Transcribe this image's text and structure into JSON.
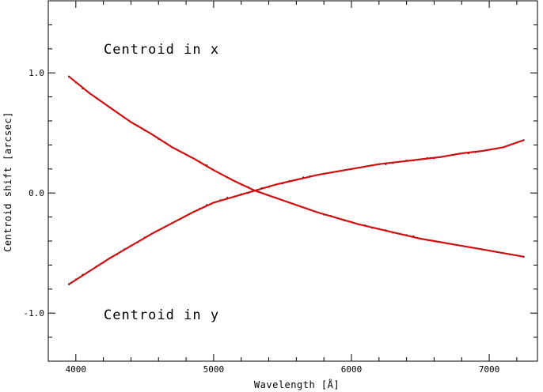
{
  "chart_data": {
    "type": "scatter",
    "title": "",
    "xlabel": "Wavelength [Å]",
    "ylabel": "Centroid shift [arcsec]",
    "xlim": [
      3800,
      7350
    ],
    "ylim": [
      -1.4,
      1.6
    ],
    "x_ticks": [
      4000,
      5000,
      6000,
      7000
    ],
    "y_ticks": [
      -1.0,
      0.0,
      1.0
    ],
    "x_tick_labels": [
      "4000",
      "5000",
      "6000",
      "7000"
    ],
    "y_tick_labels": [
      "-1.0",
      "0.0",
      "1.0"
    ],
    "grid": false,
    "legend": "none",
    "annotations": [
      {
        "text": "Centroid in x",
        "x": 4200,
        "y": 1.18
      },
      {
        "text": "Centroid in y",
        "x": 4200,
        "y": -1.0
      }
    ],
    "series": [
      {
        "kind": "points",
        "color": "#000000",
        "x": [
          3950,
          4000,
          4050,
          4100,
          4150,
          4200,
          4250,
          4300,
          4350,
          4400,
          4450,
          4500,
          4550,
          4600,
          4650,
          4700,
          4750,
          4800,
          4850,
          4900,
          4950,
          5000,
          5050,
          5100,
          5150,
          5200,
          5250,
          5300,
          5350,
          5400,
          5450,
          5500,
          5550,
          5600,
          5650,
          5700,
          5750,
          5800,
          5850,
          5900,
          5950,
          6000,
          6050,
          6100,
          6150,
          6200,
          6250,
          6300,
          6350,
          6400,
          6450,
          6500,
          6550,
          6600,
          6650,
          6700,
          6750,
          6800,
          6850,
          6900,
          6950,
          7000,
          7050,
          7100,
          7150,
          7200,
          7250
        ],
        "y": [
          0.97,
          0.92,
          0.87,
          0.83,
          0.79,
          0.75,
          0.71,
          0.67,
          0.63,
          0.59,
          0.56,
          0.52,
          0.49,
          0.45,
          0.42,
          0.38,
          0.35,
          0.32,
          0.29,
          0.26,
          0.23,
          0.19,
          0.16,
          0.13,
          0.1,
          0.07,
          0.05,
          0.02,
          0.0,
          -0.02,
          -0.04,
          -0.06,
          -0.08,
          -0.1,
          -0.12,
          -0.14,
          -0.16,
          -0.18,
          -0.19,
          -0.21,
          -0.23,
          -0.24,
          -0.26,
          -0.27,
          -0.29,
          -0.3,
          -0.31,
          -0.33,
          -0.34,
          -0.35,
          -0.36,
          -0.38,
          -0.39,
          -0.4,
          -0.41,
          -0.42,
          -0.43,
          -0.44,
          -0.45,
          -0.46,
          -0.47,
          -0.48,
          -0.49,
          -0.5,
          -0.51,
          -0.52,
          -0.53
        ]
      },
      {
        "kind": "points",
        "color": "#000000",
        "x": [
          3950,
          4000,
          4050,
          4100,
          4150,
          4200,
          4250,
          4300,
          4350,
          4400,
          4450,
          4500,
          4550,
          4600,
          4650,
          4700,
          4750,
          4800,
          4850,
          4900,
          4950,
          5000,
          5050,
          5100,
          5150,
          5200,
          5250,
          5300,
          5350,
          5400,
          5450,
          5500,
          5550,
          5600,
          5650,
          5700,
          5750,
          5800,
          5850,
          5900,
          5950,
          6000,
          6050,
          6100,
          6150,
          6200,
          6250,
          6300,
          6350,
          6400,
          6450,
          6500,
          6550,
          6600,
          6650,
          6700,
          6750,
          6800,
          6850,
          6900,
          6950,
          7000,
          7050,
          7100,
          7150,
          7200,
          7250
        ],
        "y": [
          -0.76,
          -0.72,
          -0.68,
          -0.65,
          -0.61,
          -0.58,
          -0.54,
          -0.51,
          -0.47,
          -0.44,
          -0.41,
          -0.37,
          -0.34,
          -0.31,
          -0.28,
          -0.25,
          -0.22,
          -0.19,
          -0.16,
          -0.13,
          -0.1,
          -0.08,
          -0.06,
          -0.04,
          -0.03,
          -0.01,
          0.0,
          0.02,
          0.04,
          0.05,
          0.07,
          0.08,
          0.1,
          0.11,
          0.13,
          0.14,
          0.15,
          0.16,
          0.17,
          0.18,
          0.19,
          0.2,
          0.21,
          0.22,
          0.23,
          0.24,
          0.24,
          0.25,
          0.26,
          0.27,
          0.27,
          0.28,
          0.29,
          0.29,
          0.3,
          0.31,
          0.32,
          0.33,
          0.33,
          0.34,
          0.35,
          0.36,
          0.37,
          0.38,
          0.4,
          0.42,
          0.44
        ]
      },
      {
        "kind": "fit",
        "color": "#d01010",
        "x": [
          3950,
          4100,
          4250,
          4400,
          4550,
          4700,
          4850,
          5000,
          5150,
          5300,
          5450,
          5600,
          5750,
          5900,
          6050,
          6200,
          6350,
          6500,
          6650,
          6800,
          6950,
          7100,
          7250
        ],
        "y": [
          0.97,
          0.83,
          0.71,
          0.59,
          0.49,
          0.38,
          0.29,
          0.19,
          0.1,
          0.02,
          -0.04,
          -0.1,
          -0.16,
          -0.21,
          -0.26,
          -0.3,
          -0.34,
          -0.38,
          -0.41,
          -0.44,
          -0.47,
          -0.5,
          -0.53
        ]
      },
      {
        "kind": "fit",
        "color": "#d01010",
        "x": [
          3950,
          4100,
          4250,
          4400,
          4550,
          4700,
          4850,
          5000,
          5150,
          5300,
          5450,
          5600,
          5750,
          5900,
          6050,
          6200,
          6350,
          6500,
          6650,
          6800,
          6950,
          7100,
          7250
        ],
        "y": [
          -0.76,
          -0.65,
          -0.54,
          -0.44,
          -0.34,
          -0.25,
          -0.16,
          -0.08,
          -0.03,
          0.02,
          0.07,
          0.11,
          0.15,
          0.18,
          0.21,
          0.24,
          0.26,
          0.28,
          0.3,
          0.33,
          0.35,
          0.38,
          0.44
        ]
      }
    ]
  }
}
